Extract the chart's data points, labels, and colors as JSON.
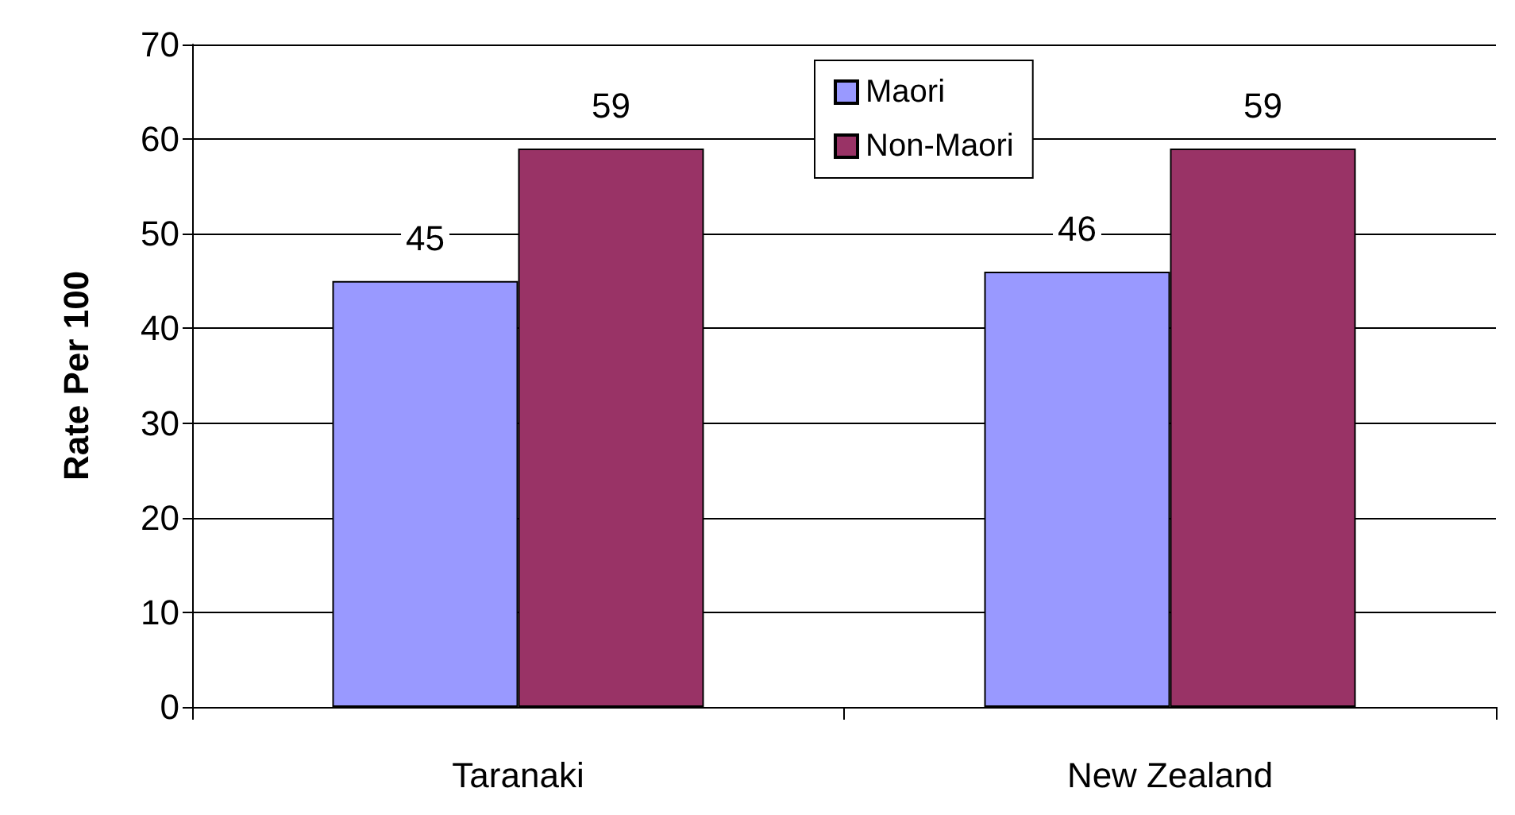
{
  "chart_data": {
    "type": "bar",
    "ylabel": "Rate Per 100",
    "categories": [
      "Taranaki",
      "New Zealand"
    ],
    "series": [
      {
        "name": "Maori",
        "color": "#9999ff",
        "values": [
          45,
          46
        ]
      },
      {
        "name": "Non-Maori",
        "color": "#993366",
        "values": [
          59,
          59
        ]
      }
    ],
    "ylim": [
      0,
      70
    ],
    "yticks": [
      0,
      10,
      20,
      30,
      40,
      50,
      60,
      70
    ],
    "grid": "y",
    "legend": "top",
    "data_labels": true
  }
}
